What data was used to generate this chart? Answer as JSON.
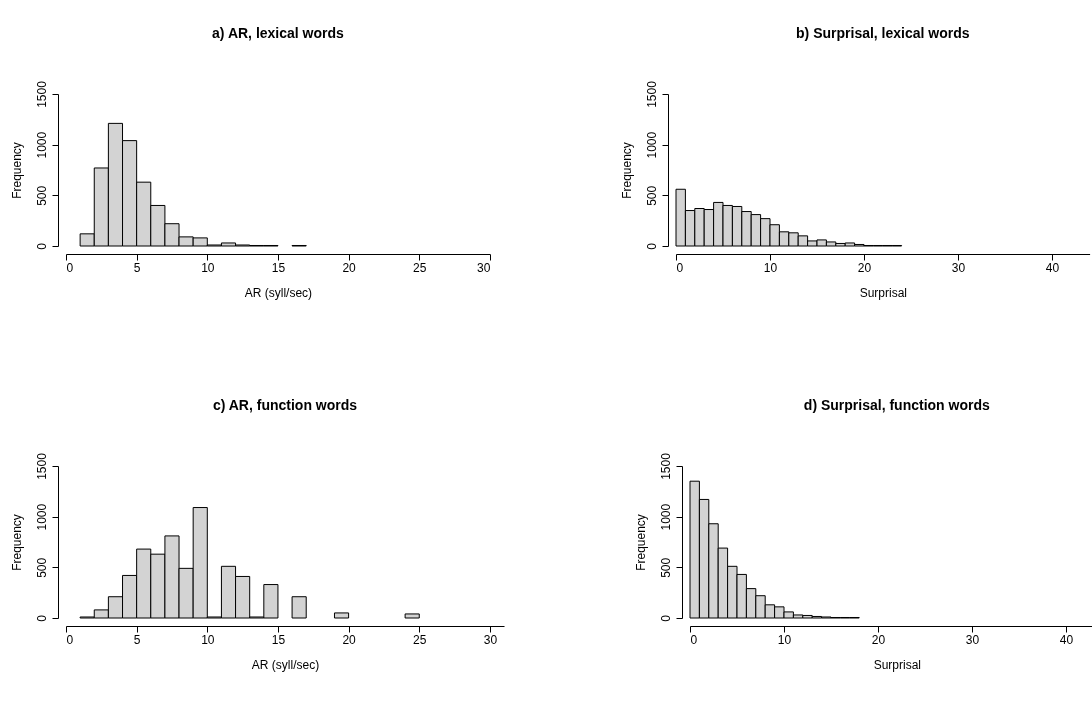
{
  "chart_data": [
    {
      "type": "histogram",
      "title": "a) AR, lexical words",
      "xlabel": "AR (syll/sec)",
      "ylabel": "Frequency",
      "color": "#d3d3d3",
      "bins": [
        0,
        1,
        2,
        3,
        4,
        5,
        6,
        7,
        8,
        9,
        10,
        11,
        12,
        13,
        14,
        15,
        16,
        17,
        18,
        19,
        20,
        21,
        22,
        23,
        24,
        25,
        26,
        27,
        28,
        29,
        30
      ],
      "values": [
        0,
        120,
        770,
        1210,
        1040,
        630,
        400,
        220,
        90,
        80,
        10,
        30,
        10,
        5,
        5,
        0,
        5,
        0,
        0,
        0,
        0,
        0,
        0,
        0,
        0,
        0,
        0,
        0,
        0,
        0
      ],
      "xlim": [
        0,
        30
      ],
      "xticks": [
        0,
        5,
        10,
        15,
        20,
        25,
        30
      ],
      "ylim": [
        0,
        1500
      ],
      "yticks": [
        0,
        500,
        1000,
        1500
      ]
    },
    {
      "type": "histogram",
      "title": "b) Surprisal, lexical words",
      "xlabel": "Surprisal",
      "ylabel": "Frequency",
      "color": "#d3d3d3",
      "bins": [
        0,
        1,
        2,
        3,
        4,
        5,
        6,
        7,
        8,
        9,
        10,
        11,
        12,
        13,
        14,
        15,
        16,
        17,
        18,
        19,
        20,
        21,
        22,
        23,
        24,
        25,
        26,
        27,
        28,
        29,
        30,
        31,
        32,
        33,
        34,
        35,
        36,
        37,
        38,
        39,
        40,
        41,
        42,
        43,
        44
      ],
      "values": [
        560,
        350,
        370,
        360,
        430,
        400,
        390,
        340,
        310,
        270,
        210,
        140,
        130,
        100,
        50,
        60,
        40,
        25,
        30,
        15,
        5,
        5,
        5,
        5,
        0,
        0,
        0,
        0,
        0,
        0,
        0,
        0,
        0,
        0,
        0,
        0,
        0,
        0,
        0,
        0,
        0,
        0,
        0,
        0
      ],
      "xlim": [
        0,
        44
      ],
      "xticks": [
        0,
        10,
        20,
        30,
        40
      ],
      "ylim": [
        0,
        1500
      ],
      "yticks": [
        0,
        500,
        1000,
        1500
      ]
    },
    {
      "type": "histogram",
      "title": "c) AR, function words",
      "xlabel": "AR (syll/sec)",
      "ylabel": "Frequency",
      "color": "#d3d3d3",
      "bins": [
        0,
        1,
        2,
        3,
        4,
        5,
        6,
        7,
        8,
        9,
        10,
        11,
        12,
        13,
        14,
        15,
        16,
        17,
        18,
        19,
        20,
        21,
        22,
        23,
        24,
        25,
        26,
        27,
        28,
        29,
        30,
        31
      ],
      "values": [
        0,
        10,
        80,
        210,
        420,
        680,
        630,
        810,
        490,
        1090,
        10,
        510,
        410,
        10,
        330,
        0,
        210,
        0,
        0,
        50,
        0,
        0,
        0,
        0,
        40,
        0,
        0,
        0,
        0,
        0,
        0
      ],
      "xlim": [
        0,
        31
      ],
      "xticks": [
        0,
        5,
        10,
        15,
        20,
        25,
        30
      ],
      "ylim": [
        0,
        1500
      ],
      "yticks": [
        0,
        500,
        1000,
        1500
      ]
    },
    {
      "type": "histogram",
      "title": "d) Surprisal, function words",
      "xlabel": "Surprisal",
      "ylabel": "Frequency",
      "color": "#d3d3d3",
      "bins": [
        0,
        1,
        2,
        3,
        4,
        5,
        6,
        7,
        8,
        9,
        10,
        11,
        12,
        13,
        14,
        15,
        16,
        17,
        18,
        19,
        20,
        21,
        22,
        23,
        24,
        25,
        26,
        27,
        28,
        29,
        30,
        31,
        32,
        33,
        34,
        35,
        36,
        37,
        38,
        39,
        40,
        41,
        42,
        43,
        44
      ],
      "values": [
        1350,
        1170,
        930,
        690,
        510,
        430,
        290,
        220,
        130,
        110,
        60,
        30,
        25,
        15,
        10,
        5,
        5,
        5,
        0,
        0,
        0,
        0,
        0,
        0,
        0,
        0,
        0,
        0,
        0,
        0,
        0,
        0,
        0,
        0,
        0,
        0,
        0,
        0,
        0,
        0,
        0,
        0,
        0,
        0
      ],
      "xlim": [
        0,
        44
      ],
      "xticks": [
        0,
        10,
        20,
        30,
        40
      ],
      "ylim": [
        0,
        1500
      ],
      "yticks": [
        0,
        500,
        1000,
        1500
      ]
    }
  ]
}
